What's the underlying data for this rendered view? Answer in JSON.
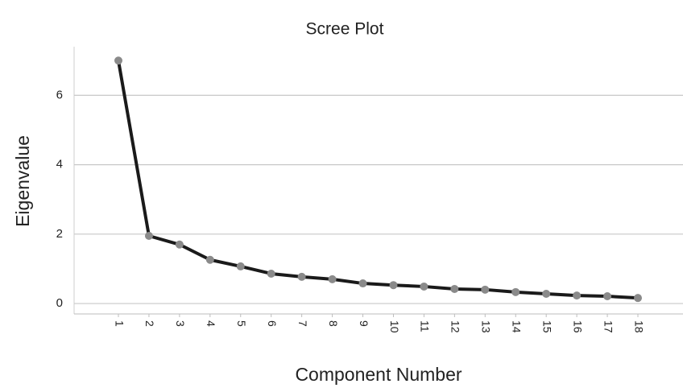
{
  "chart_data": {
    "type": "line",
    "title": "Scree Plot",
    "x_label": "Component Number",
    "y_label": "Eigenvalue",
    "categories": [
      "1",
      "2",
      "3",
      "4",
      "5",
      "6",
      "7",
      "8",
      "9",
      "10",
      "11",
      "12",
      "13",
      "14",
      "15",
      "16",
      "17",
      "18"
    ],
    "values": [
      7.0,
      1.95,
      1.7,
      1.26,
      1.07,
      0.86,
      0.77,
      0.7,
      0.58,
      0.53,
      0.49,
      0.42,
      0.4,
      0.33,
      0.28,
      0.23,
      0.21,
      0.16
    ],
    "color": "#1a1a1a",
    "marker_color": "#8a8a8a",
    "ylim": [
      -0.3,
      7.4
    ],
    "yticks": [
      0,
      2,
      4,
      6
    ],
    "grid": true
  }
}
